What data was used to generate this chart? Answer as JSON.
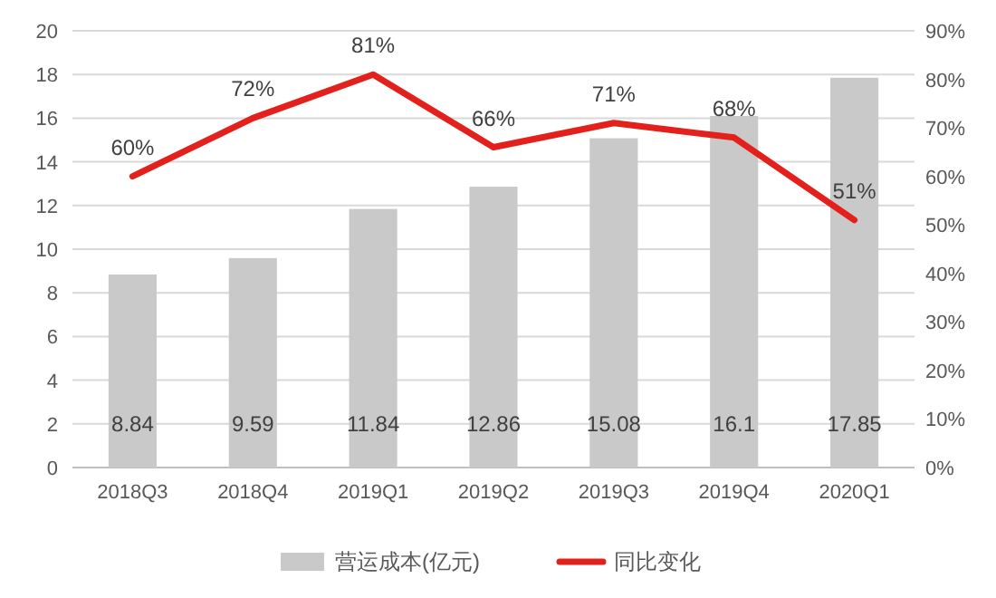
{
  "chart_data": {
    "type": "bar",
    "categories": [
      "2018Q3",
      "2018Q4",
      "2019Q1",
      "2019Q2",
      "2019Q3",
      "2019Q4",
      "2020Q1"
    ],
    "series": [
      {
        "name": "营运成本(亿元)",
        "color": "#c9c9c9",
        "values": [
          8.84,
          9.59,
          11.84,
          12.86,
          15.08,
          16.1,
          17.85
        ],
        "value_labels": [
          "8.84",
          "9.59",
          "11.84",
          "12.86",
          "15.08",
          "16.1",
          "17.85"
        ]
      },
      {
        "name": "同比变化",
        "type": "line",
        "axis": "y2",
        "color": "#e3201b",
        "values": [
          60,
          72,
          81,
          66,
          71,
          68,
          51
        ],
        "value_labels": [
          "60%",
          "72%",
          "81%",
          "66%",
          "71%",
          "68%",
          "51%"
        ]
      }
    ],
    "ylim": [
      0,
      20
    ],
    "yticks": [
      0,
      2,
      4,
      6,
      8,
      10,
      12,
      14,
      16,
      18,
      20
    ],
    "y2lim": [
      0,
      90
    ],
    "y2ticks": [
      {
        "value": 0,
        "label": "0%"
      },
      {
        "value": 10,
        "label": "10%"
      },
      {
        "value": 20,
        "label": "20%"
      },
      {
        "value": 30,
        "label": "30%"
      },
      {
        "value": 40,
        "label": "40%"
      },
      {
        "value": 50,
        "label": "50%"
      },
      {
        "value": 60,
        "label": "60%"
      },
      {
        "value": 70,
        "label": "70%"
      },
      {
        "value": 80,
        "label": "80%"
      },
      {
        "value": 90,
        "label": "90%"
      }
    ],
    "grid": "y",
    "legend": "bottom",
    "marker": "none",
    "line_style": "solid"
  }
}
